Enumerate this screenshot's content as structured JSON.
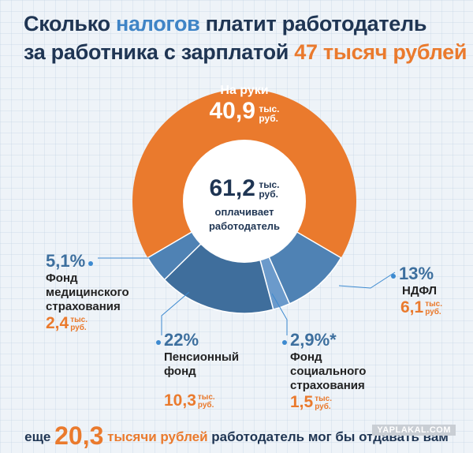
{
  "title": {
    "part1": "Сколько ",
    "part2": "налогов",
    "part3": " платит работодатель",
    "part4": "за работника с зарплатой ",
    "part5": "47 тысяч рублей"
  },
  "center": {
    "value": "61,2",
    "unit1": "тыс.",
    "unit2": "руб.",
    "line1": "оплачивает",
    "line2": "работодатель"
  },
  "take_home": {
    "caption": "На руки",
    "value": "40,9",
    "unit1": "тыс.",
    "unit2": "руб."
  },
  "labels": {
    "medical": {
      "pct": "5,1%",
      "name1": "Фонд",
      "name2": "медицинского",
      "name3": "страхования",
      "amount": "2,4",
      "unit1": "тыс.",
      "unit2": "руб."
    },
    "pension": {
      "pct": "22%",
      "name1": "Пенсионный",
      "name2": "фонд",
      "amount": "10,3",
      "unit1": "тыс.",
      "unit2": "руб."
    },
    "social": {
      "pct": "2,9%*",
      "name1": "Фонд",
      "name2": "социального",
      "name3": "страхования",
      "amount": "1,5",
      "unit1": "тыс.",
      "unit2": "руб."
    },
    "ndfl": {
      "pct": "13%",
      "name1": "НДФЛ",
      "amount": "6,1",
      "unit1": "тыс.",
      "unit2": "руб."
    }
  },
  "footer": {
    "pre": "еще ",
    "value": "20,3",
    "mid": " тысячи рублей",
    "post": " работодатель мог бы отдавать вам"
  },
  "watermark": "YAPLAKAL.COM",
  "colors": {
    "orange": "#ea7a2d",
    "blue_dark": "#3f6e9c",
    "blue_mid": "#4f82b4",
    "blue_light": "#6b9acb",
    "inner": "#ffffff"
  },
  "chart_data": {
    "type": "pie",
    "title": "Сколько налогов платит работодатель за работника с зарплатой 47 тысяч рублей",
    "categories": [
      "На руки",
      "НДФЛ",
      "Фонд социального страхования",
      "Пенсионный фонд",
      "Фонд медицинского страхования"
    ],
    "values": [
      40.9,
      6.1,
      1.5,
      10.3,
      2.4
    ],
    "unit": "тыс. руб.",
    "total": 61.2
  }
}
